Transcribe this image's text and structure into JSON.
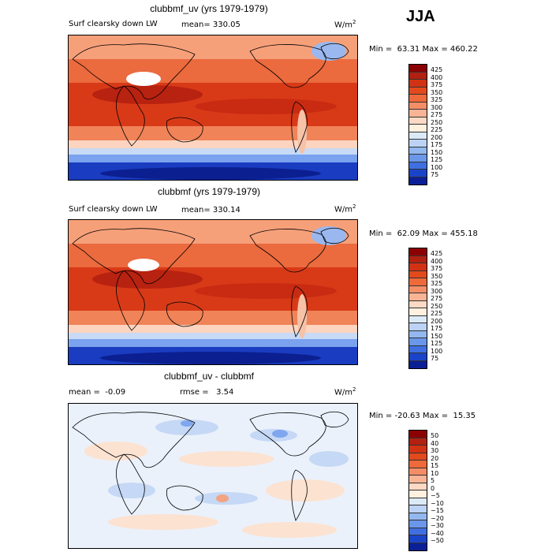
{
  "season": "JJA",
  "panels": [
    {
      "title": "clubbmf_uv (yrs 1979-1979)",
      "left_label": "Surf clearsky down LW",
      "stat_label": "mean= 330.05",
      "units_base": "W/m",
      "units_exp": "2",
      "minmax": "Min =  63.31 Max = 460.22",
      "colorbar": {
        "labels": [
          "425",
          "400",
          "375",
          "350",
          "325",
          "300",
          "275",
          "250",
          "225",
          "200",
          "175",
          "150",
          "125",
          "100",
          "75"
        ],
        "colors": [
          "#8b0000",
          "#b22010",
          "#d23214",
          "#e24a1c",
          "#ee6a3a",
          "#f48e66",
          "#f9b495",
          "#fcd9c4",
          "#fff0e0",
          "#dceaf8",
          "#bcd3f5",
          "#93b8f0",
          "#6a97ea",
          "#3f6fe0",
          "#1a44c8",
          "#0a1f96"
        ]
      }
    },
    {
      "title": "clubbmf (yrs 1979-1979)",
      "left_label": "Surf clearsky down LW",
      "stat_label": "mean= 330.14",
      "units_base": "W/m",
      "units_exp": "2",
      "minmax": "Min =  62.09 Max = 455.18",
      "colorbar": {
        "labels": [
          "425",
          "400",
          "375",
          "350",
          "325",
          "300",
          "275",
          "250",
          "225",
          "200",
          "175",
          "150",
          "125",
          "100",
          "75"
        ],
        "colors": [
          "#8b0000",
          "#b22010",
          "#d23214",
          "#e24a1c",
          "#ee6a3a",
          "#f48e66",
          "#f9b495",
          "#fcd9c4",
          "#fff0e0",
          "#dceaf8",
          "#bcd3f5",
          "#93b8f0",
          "#6a97ea",
          "#3f6fe0",
          "#1a44c8",
          "#0a1f96"
        ]
      }
    },
    {
      "title": "clubbmf_uv - clubbmf",
      "left_label": "mean =  -0.09",
      "stat_label": "rmse =   3.54",
      "units_base": "W/m",
      "units_exp": "2",
      "minmax": "Min = -20.63 Max =  15.35",
      "colorbar": {
        "labels": [
          "50",
          "40",
          "30",
          "20",
          "15",
          "10",
          "5",
          "0",
          "−5",
          "−10",
          "−15",
          "−20",
          "−30",
          "−40",
          "−50"
        ],
        "colors": [
          "#8b0000",
          "#b22010",
          "#d23214",
          "#e24a1c",
          "#ee6a3a",
          "#f48e66",
          "#f9b495",
          "#fcd9c4",
          "#fff0e0",
          "#dceaf8",
          "#bcd3f5",
          "#93b8f0",
          "#6a97ea",
          "#3f6fe0",
          "#1a44c8",
          "#0a1f96"
        ]
      }
    }
  ]
}
